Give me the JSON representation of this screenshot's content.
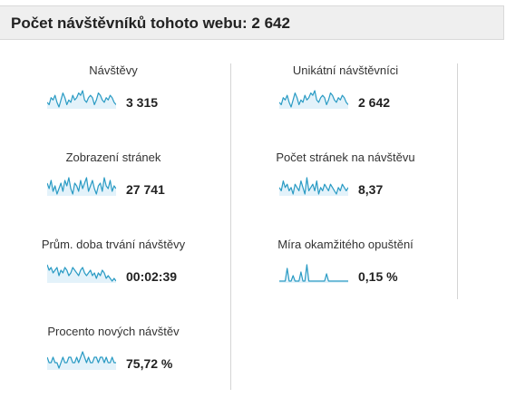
{
  "header": {
    "title": "Počet návštěvníků tohoto webu: 2 642"
  },
  "colors": {
    "sparkline_stroke": "#2a9bc4",
    "sparkline_fill": "#e3f2fa",
    "header_bg": "#efefef",
    "divider": "#d4d4d4"
  },
  "metrics": [
    {
      "label": "Návštěvy",
      "value": "3 315",
      "trend": [
        5,
        4,
        7,
        6,
        8,
        5,
        3,
        6,
        9,
        7,
        4,
        6,
        5,
        8,
        6,
        7,
        9,
        8,
        10,
        6,
        5,
        7,
        8,
        7,
        4,
        6,
        9,
        8,
        6,
        5,
        7,
        6,
        8,
        7,
        5,
        4
      ]
    },
    {
      "label": "Unikátní návštěvníci",
      "value": "2 642",
      "trend": [
        5,
        4,
        7,
        6,
        8,
        5,
        3,
        6,
        9,
        7,
        4,
        6,
        5,
        8,
        6,
        7,
        9,
        8,
        10,
        6,
        5,
        7,
        8,
        7,
        4,
        6,
        9,
        8,
        6,
        5,
        7,
        6,
        8,
        7,
        5,
        4
      ]
    },
    {
      "label": "Zobrazení stránek",
      "value": "27 741",
      "trend": [
        7,
        5,
        8,
        4,
        6,
        3,
        5,
        7,
        4,
        8,
        6,
        9,
        5,
        3,
        7,
        6,
        4,
        8,
        5,
        7,
        9,
        4,
        6,
        8,
        5,
        3,
        6,
        7,
        4,
        9,
        6,
        5,
        8,
        4,
        6,
        5
      ]
    },
    {
      "label": "Počet stránek na návštěvu",
      "value": "8,37",
      "trend": [
        6,
        5,
        8,
        6,
        7,
        5,
        6,
        4,
        7,
        6,
        5,
        8,
        6,
        4,
        9,
        5,
        6,
        7,
        5,
        8,
        4,
        6,
        5,
        7,
        6,
        5,
        7,
        6,
        5,
        4,
        6,
        5,
        7,
        6,
        5,
        6
      ]
    },
    {
      "label": "Prům. doba trvání návštěvy",
      "value": "00:02:39",
      "trend": [
        9,
        7,
        8,
        6,
        7,
        8,
        5,
        7,
        6,
        8,
        7,
        5,
        6,
        8,
        7,
        6,
        5,
        7,
        8,
        6,
        5,
        6,
        7,
        5,
        6,
        4,
        6,
        5,
        7,
        6,
        4,
        5,
        4,
        3,
        4,
        3
      ]
    },
    {
      "label": "Míra okamžitého opuštění",
      "value": "0,15 %",
      "trend": [
        0,
        0,
        0,
        0,
        7,
        0,
        0,
        3,
        0,
        0,
        0,
        5,
        0,
        0,
        9,
        0,
        0,
        0,
        0,
        0,
        0,
        0,
        0,
        0,
        4,
        0,
        0,
        0,
        0,
        0,
        0,
        0,
        0,
        0,
        0,
        0
      ]
    },
    {
      "label": "Procento nových návštěv",
      "value": "75,72 %",
      "trend": [
        8,
        7,
        7,
        8,
        7,
        7,
        6,
        7,
        8,
        7,
        7,
        8,
        8,
        7,
        7,
        8,
        7,
        8,
        9,
        8,
        7,
        8,
        7,
        7,
        8,
        8,
        7,
        8,
        8,
        7,
        8,
        7,
        7,
        8,
        7,
        7
      ]
    }
  ]
}
